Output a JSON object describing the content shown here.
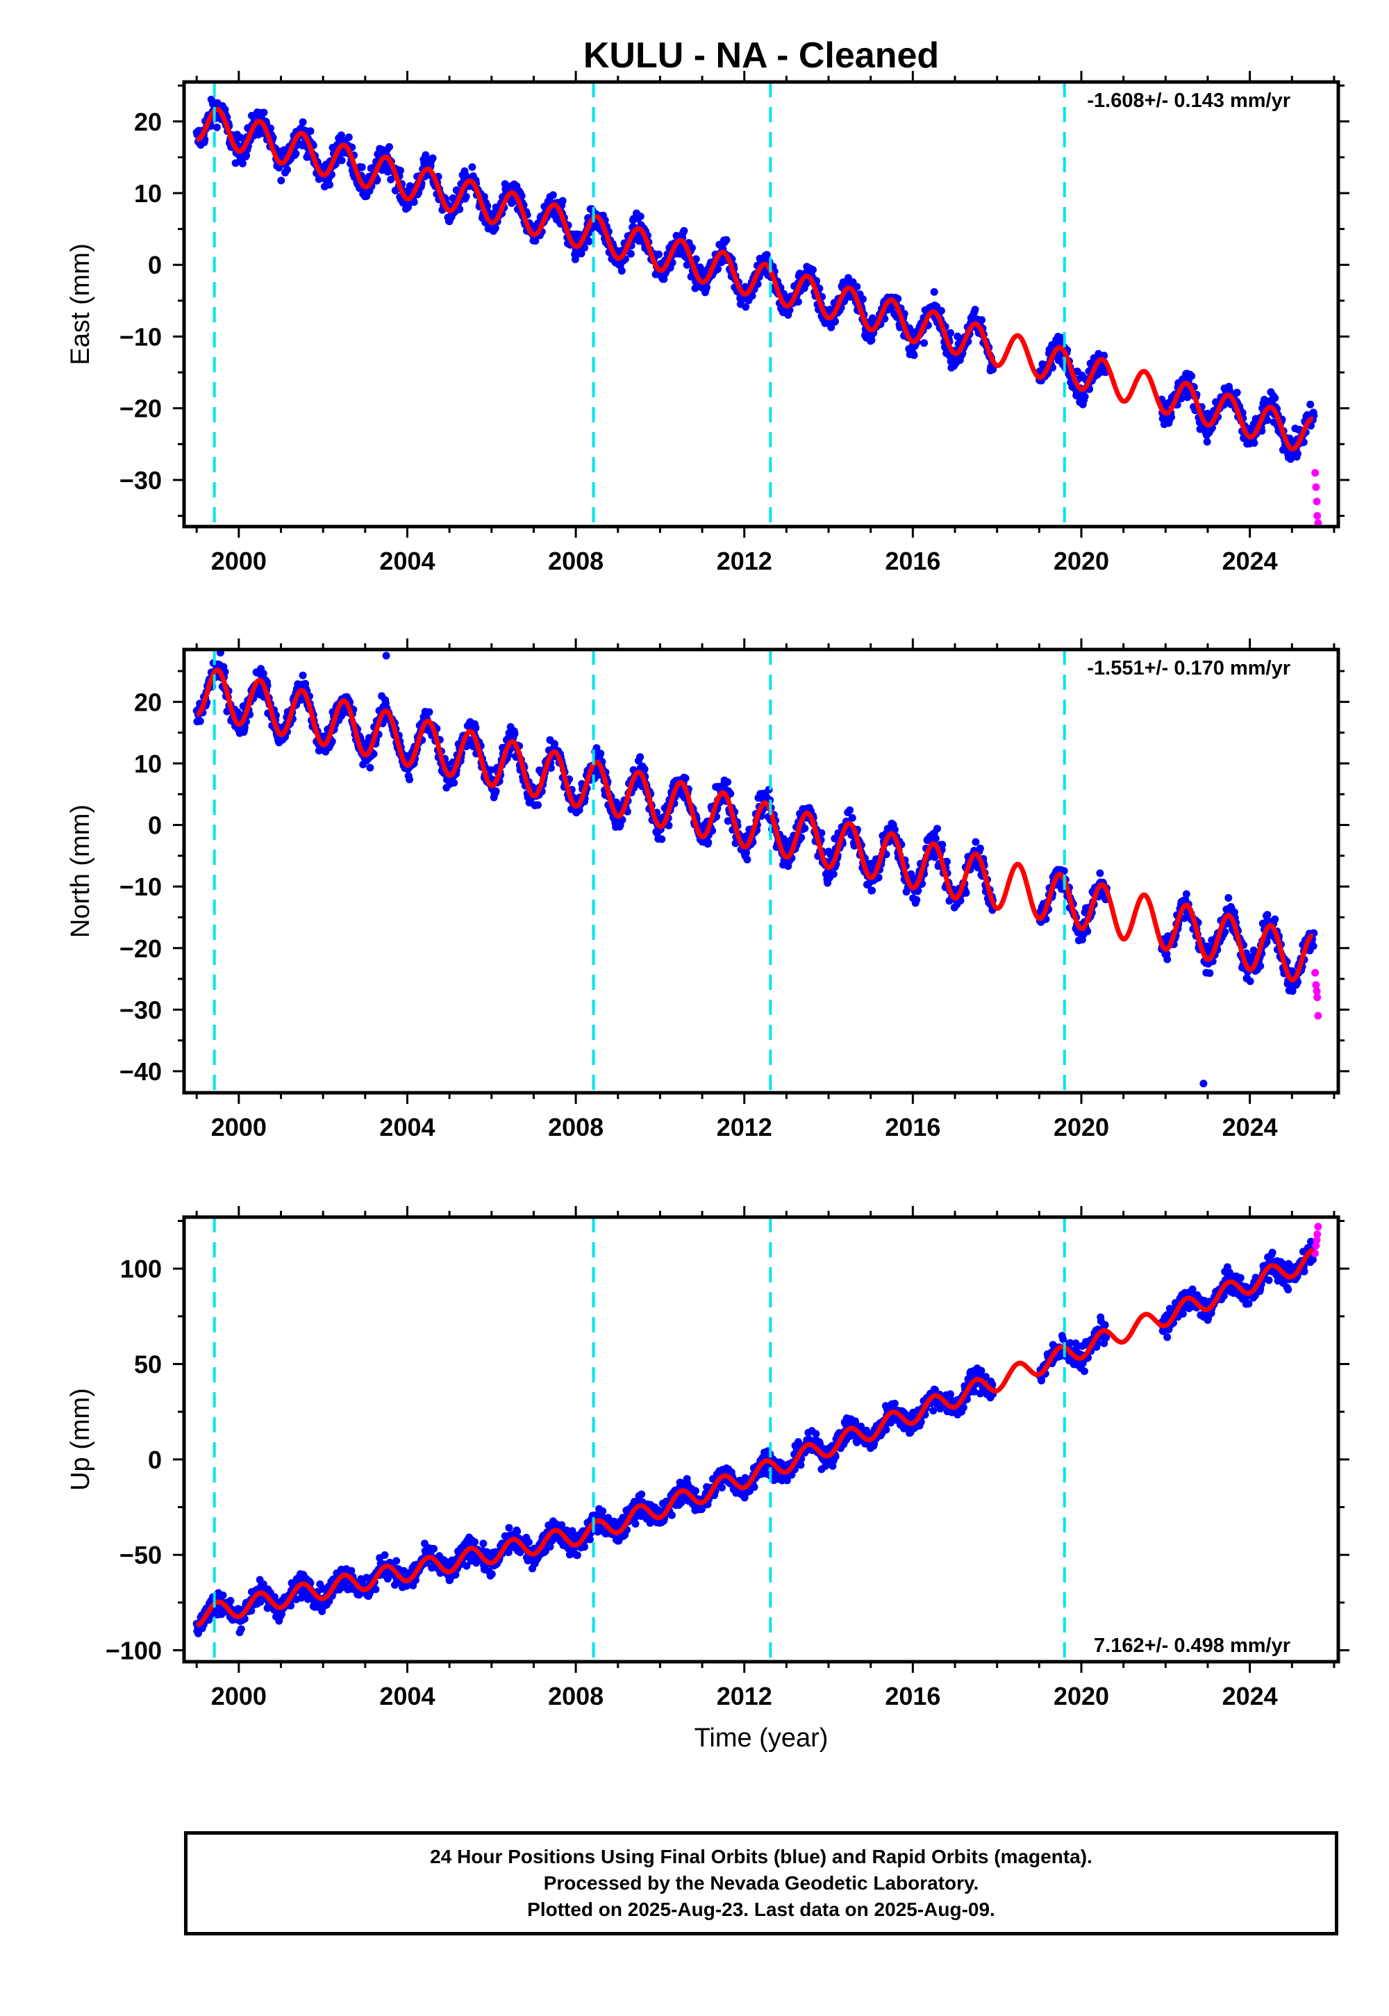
{
  "title": "KULU  - NA - Cleaned",
  "xlabel": "Time (year)",
  "x_ticks": [
    2000,
    2004,
    2008,
    2012,
    2016,
    2020,
    2024
  ],
  "equipment_changes": [
    1999.42,
    2008.42,
    2012.62,
    2019.6
  ],
  "colors": {
    "final_orbits": "#0000ff",
    "rapid_orbits": "#ff00ff",
    "model": "#ff0000",
    "equipment_change": "#00e5ee"
  },
  "footer": {
    "line1": "24 Hour Positions Using Final Orbits (blue) and Rapid Orbits (magenta).",
    "line2": "Processed by the Nevada Geodetic Laboratory.",
    "line3": "Plotted on 2025-Aug-23. Last data on 2025-Aug-09."
  },
  "chart_data": [
    {
      "type": "scatter",
      "component": "east",
      "ylabel": "East (mm)",
      "rate_text": "-1.608+/- 0.143 mm/yr",
      "rate_position": "top-right",
      "xlim": [
        1998.7,
        2026.1
      ],
      "ylim": [
        -36.5,
        25.5
      ],
      "y_ticks": [
        20,
        10,
        0,
        -10,
        -20,
        -30
      ],
      "series": [
        {
          "name": "Final Orbits",
          "color": "blue",
          "trend_x": [
            1999.0,
            2025.5
          ],
          "trend_y": [
            20.0,
            -24.0
          ],
          "seasonal_amplitude": 2.5,
          "scatter_spread": 2.5
        },
        {
          "name": "Rapid Orbits",
          "color": "magenta",
          "x": [
            2025.55,
            2025.57,
            2025.59,
            2025.6,
            2025.62
          ],
          "y": [
            -29,
            -31,
            -33,
            -35,
            -36
          ]
        }
      ],
      "gaps": [
        [
          2017.9,
          2019.0
        ],
        [
          2020.6,
          2021.9
        ]
      ]
    },
    {
      "type": "scatter",
      "component": "north",
      "ylabel": "North (mm)",
      "rate_text": "-1.551+/- 0.170 mm/yr",
      "rate_position": "top-right",
      "xlim": [
        1998.7,
        2026.1
      ],
      "ylim": [
        -43.5,
        28.5
      ],
      "y_ticks": [
        20,
        10,
        0,
        -10,
        -20,
        -30,
        -40
      ],
      "series": [
        {
          "name": "Final Orbits",
          "color": "blue",
          "trend_x": [
            1999.0,
            2025.5
          ],
          "trend_y": [
            22.0,
            -22.0
          ],
          "seasonal_amplitude": 4.0,
          "scatter_spread": 3.0
        },
        {
          "name": "Rapid Orbits",
          "color": "magenta",
          "x": [
            2025.55,
            2025.57,
            2025.59,
            2025.6,
            2025.62
          ],
          "y": [
            -24,
            -26,
            -27,
            -28,
            -31
          ]
        }
      ],
      "outliers": [
        [
          2003.5,
          27.5
        ],
        [
          2022.9,
          -42.0
        ]
      ],
      "gaps": [
        [
          2017.9,
          2019.0
        ],
        [
          2020.6,
          2021.9
        ]
      ]
    },
    {
      "type": "scatter",
      "component": "up",
      "ylabel": "Up (mm)",
      "rate_text": "7.162+/- 0.498 mm/yr",
      "rate_position": "bottom-right",
      "xlim": [
        1998.7,
        2026.1
      ],
      "ylim": [
        -106,
        127
      ],
      "y_ticks": [
        100,
        50,
        0,
        -50,
        -100
      ],
      "series": [
        {
          "name": "Final Orbits",
          "color": "blue",
          "trend_x": [
            1999.0,
            2008.4,
            2012.6,
            2025.5
          ],
          "trend_y": [
            -82,
            -38,
            -5,
            105
          ],
          "seasonal_amplitude": 5.0,
          "scatter_spread": 8.0
        },
        {
          "name": "Rapid Orbits",
          "color": "magenta",
          "x": [
            2025.55,
            2025.57,
            2025.59,
            2025.6,
            2025.62
          ],
          "y": [
            108,
            112,
            115,
            118,
            122
          ]
        }
      ],
      "gaps": [
        [
          2017.9,
          2019.0
        ],
        [
          2020.6,
          2021.9
        ]
      ]
    }
  ]
}
